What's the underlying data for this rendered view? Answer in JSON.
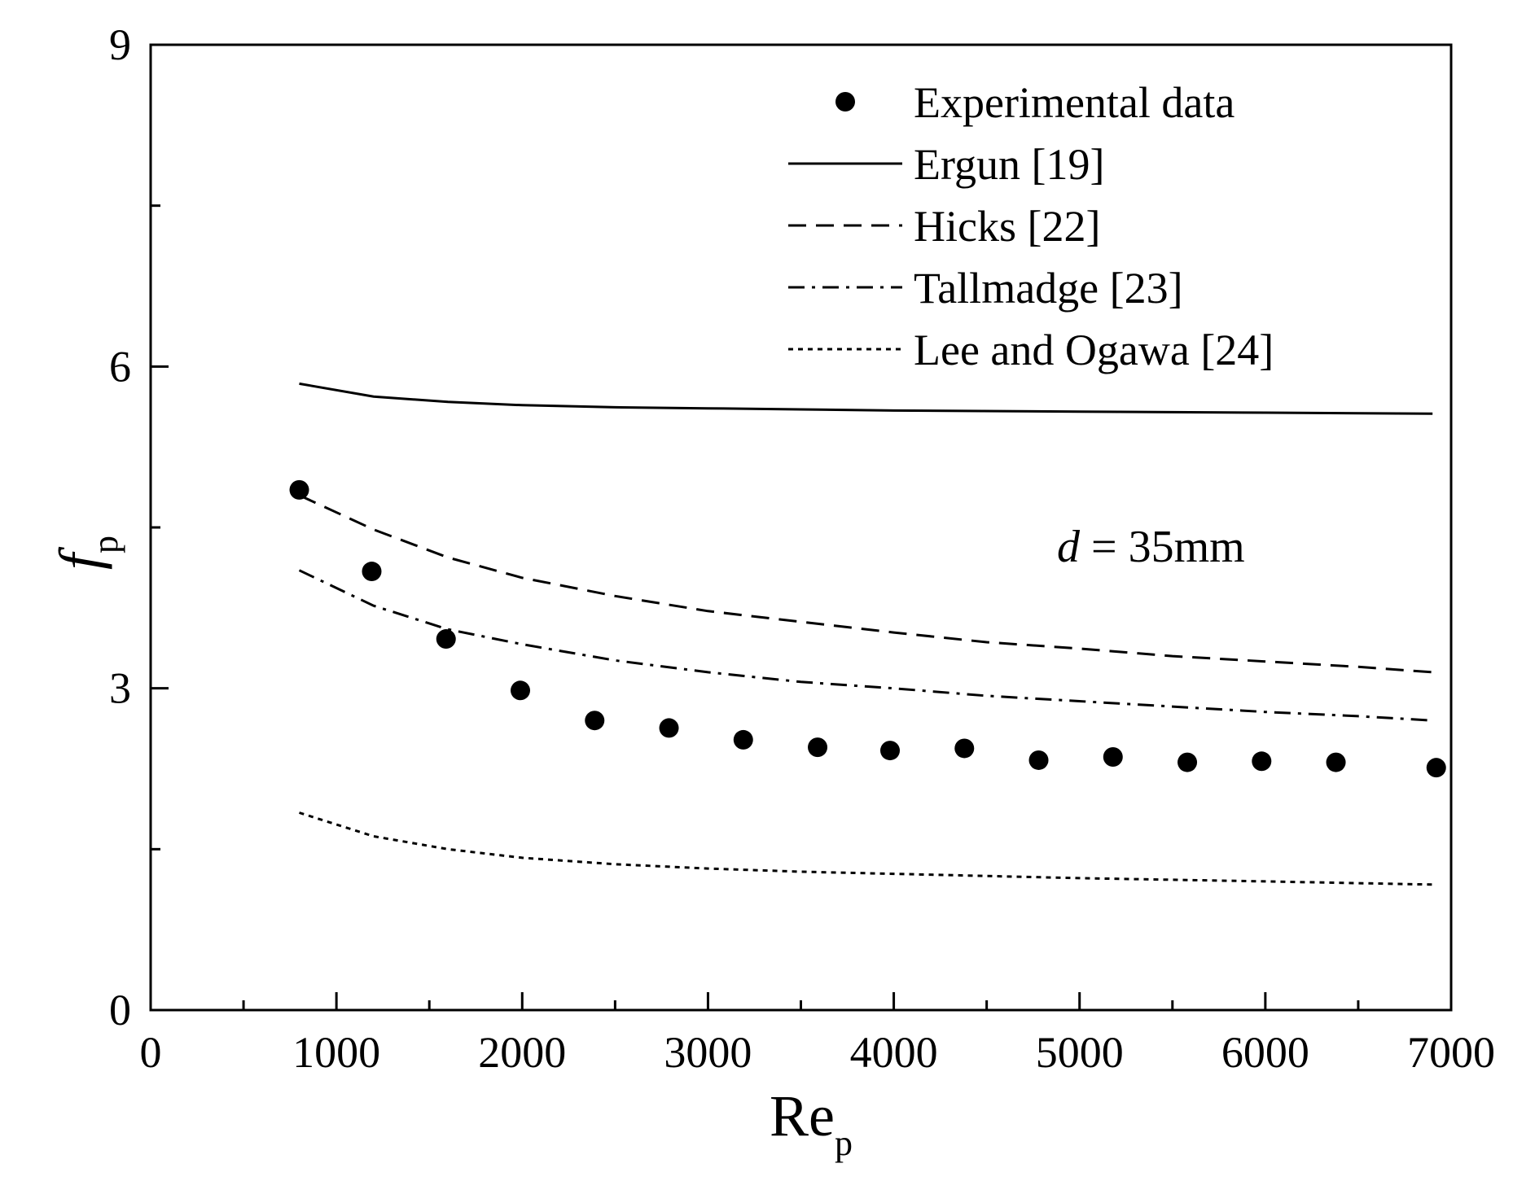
{
  "chart_data": {
    "type": "scatter+line",
    "title": "",
    "xlabel": "Re",
    "xlabel_sub": "p",
    "ylabel": "f",
    "ylabel_sub": "p",
    "xlim": [
      0,
      7000
    ],
    "ylim": [
      0,
      9
    ],
    "x_ticks": [
      0,
      1000,
      2000,
      3000,
      4000,
      5000,
      6000,
      7000
    ],
    "x_tick_labels": [
      "0",
      "1000",
      "2000",
      "3000",
      "4000",
      "5000",
      "6000",
      "7000"
    ],
    "x_minor_ticks": [
      500,
      1500,
      2500,
      3500,
      4500,
      5500,
      6500
    ],
    "y_ticks": [
      0,
      3,
      6,
      9
    ],
    "y_tick_labels": [
      "0",
      "3",
      "6",
      "9"
    ],
    "y_minor_ticks": [
      1.5,
      4.5,
      7.5
    ],
    "grid": false,
    "legend_position": "top-right",
    "annotation": {
      "italic": "d",
      "text": " = 35mm"
    },
    "series": [
      {
        "name": "Experimental data",
        "style": "marker",
        "x": [
          800,
          1190,
          1590,
          1990,
          2390,
          2790,
          3190,
          3590,
          3980,
          4380,
          4780,
          5180,
          5580,
          5980,
          6380,
          6920
        ],
        "y": [
          4.85,
          4.09,
          3.46,
          2.98,
          2.7,
          2.63,
          2.52,
          2.45,
          2.42,
          2.44,
          2.33,
          2.36,
          2.31,
          2.32,
          2.31,
          2.26
        ]
      },
      {
        "name": "Ergun [19]",
        "style": "solid",
        "x": [
          800,
          1200,
          1600,
          2000,
          2500,
          3000,
          3500,
          4000,
          5000,
          6000,
          6900
        ],
        "y": [
          5.84,
          5.72,
          5.67,
          5.64,
          5.62,
          5.61,
          5.6,
          5.59,
          5.58,
          5.57,
          5.56
        ]
      },
      {
        "name": "Hicks [22]",
        "style": "dashed",
        "x": [
          800,
          1200,
          1600,
          2000,
          2500,
          3000,
          3500,
          4000,
          4500,
          5000,
          5500,
          6000,
          6500,
          6900
        ],
        "y": [
          4.8,
          4.48,
          4.22,
          4.03,
          3.86,
          3.72,
          3.62,
          3.52,
          3.43,
          3.37,
          3.3,
          3.25,
          3.2,
          3.15
        ]
      },
      {
        "name": "Tallmadge [23]",
        "style": "dashdot",
        "x": [
          800,
          1200,
          1600,
          2000,
          2500,
          3000,
          3500,
          4000,
          4500,
          5000,
          5500,
          6000,
          6500,
          6900
        ],
        "y": [
          4.1,
          3.77,
          3.55,
          3.41,
          3.26,
          3.15,
          3.06,
          3.0,
          2.93,
          2.88,
          2.83,
          2.78,
          2.74,
          2.7
        ]
      },
      {
        "name": "Lee and Ogawa [24]",
        "style": "dotted",
        "x": [
          800,
          1200,
          1600,
          2000,
          2500,
          3000,
          3500,
          4000,
          5000,
          6000,
          6900
        ],
        "y": [
          1.84,
          1.62,
          1.5,
          1.42,
          1.36,
          1.32,
          1.29,
          1.27,
          1.23,
          1.2,
          1.17
        ]
      }
    ]
  }
}
